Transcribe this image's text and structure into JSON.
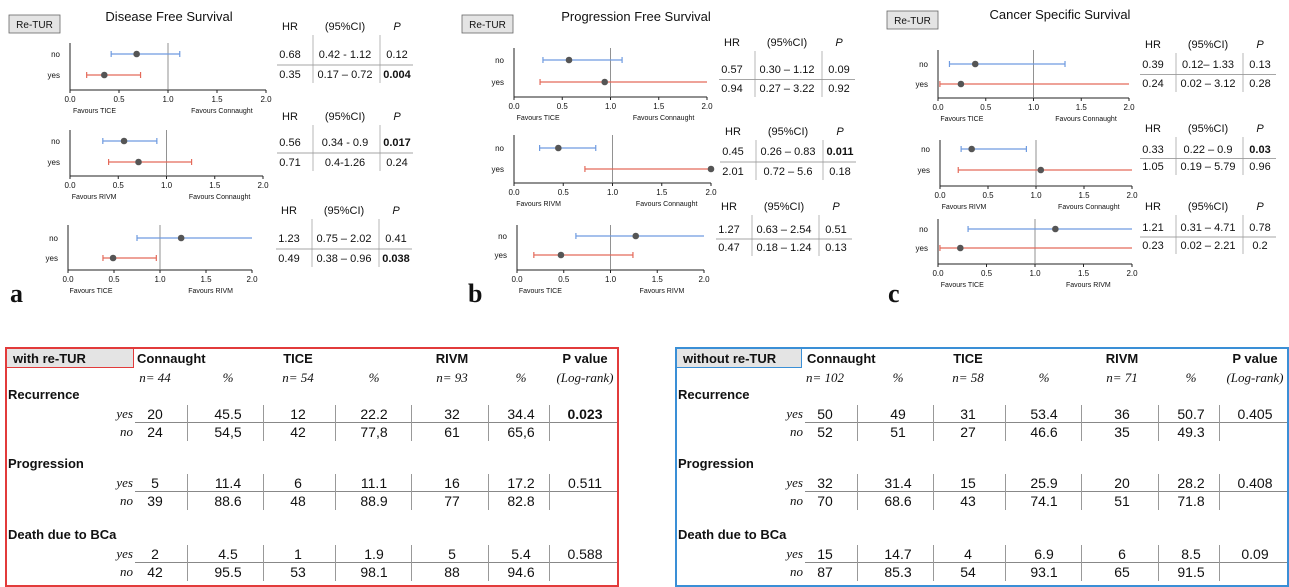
{
  "colors": {
    "blue": "#6f9be0",
    "red": "#e46a5a",
    "dot": "#555555",
    "red_border": "#e23b3b",
    "blue_border": "#3a8fd6"
  },
  "chart_data": [
    {
      "type": "forest",
      "panel": "a",
      "title": "Disease Free Survival",
      "tag": "Re-TUR",
      "favours_left": "Favours TICE",
      "favours_right": "Favours Connaught",
      "categories": [
        "no",
        "yes"
      ],
      "hr": [
        0.68,
        0.35
      ],
      "ci": [
        [
          0.42,
          1.12
        ],
        [
          0.17,
          0.72
        ]
      ],
      "ci_text": [
        "0.42 - 1.12",
        "0.17 – 0.72"
      ],
      "p": [
        "0.12",
        "0.004"
      ],
      "p_bold": [
        false,
        true
      ],
      "xlim": [
        0,
        2
      ],
      "ticks": [
        "0.0",
        "0.5",
        "1.0",
        "1.5",
        "2.0"
      ],
      "header": {
        "hr": "HR",
        "ci": "(95%CI)",
        "p": "P"
      }
    },
    {
      "type": "forest",
      "panel": "a",
      "title": "",
      "tag": "",
      "favours_left": "Favours RIVM",
      "favours_right": "Favours Connaught",
      "categories": [
        "no",
        "yes"
      ],
      "hr": [
        0.56,
        0.71
      ],
      "ci": [
        [
          0.34,
          0.9
        ],
        [
          0.4,
          1.26
        ]
      ],
      "ci_text": [
        "0.34 - 0.9",
        "0.4-1.26"
      ],
      "p": [
        "0.017",
        "0.24"
      ],
      "p_bold": [
        true,
        false
      ],
      "xlim": [
        0,
        2
      ],
      "ticks": [
        "0.0",
        "0.5",
        "1.0",
        "1.5",
        "2.0"
      ],
      "header": {
        "hr": "HR",
        "ci": "(95%CI)",
        "p": "P"
      }
    },
    {
      "type": "forest",
      "panel": "a",
      "title": "",
      "tag": "",
      "favours_left": "Favours TICE",
      "favours_right": "Favours RIVM",
      "categories": [
        "no",
        "yes"
      ],
      "hr": [
        1.23,
        0.49
      ],
      "ci": [
        [
          0.75,
          2.02
        ],
        [
          0.38,
          0.96
        ]
      ],
      "ci_text": [
        "0.75 – 2.02",
        "0.38 – 0.96"
      ],
      "p": [
        "0.41",
        "0.038"
      ],
      "p_bold": [
        false,
        true
      ],
      "xlim": [
        0,
        2
      ],
      "ticks": [
        "0.0",
        "0.5",
        "1.0",
        "1.5",
        "2.0"
      ],
      "header": {
        "hr": "HR",
        "ci": "(95%CI)",
        "p": "P"
      }
    },
    {
      "type": "forest",
      "panel": "b",
      "title": "Progression Free Survival",
      "tag": "Re-TUR",
      "favours_left": "Favours TICE",
      "favours_right": "Favours Connaught",
      "categories": [
        "no",
        "yes"
      ],
      "hr": [
        0.57,
        0.94
      ],
      "ci": [
        [
          0.3,
          1.12
        ],
        [
          0.27,
          3.22
        ]
      ],
      "ci_text": [
        "0.30 – 1.12",
        "0.27 – 3.22"
      ],
      "p": [
        "0.09",
        "0.92"
      ],
      "p_bold": [
        false,
        false
      ],
      "xlim": [
        0,
        2
      ],
      "ticks": [
        "0.0",
        "0.5",
        "1.0",
        "1.5",
        "2.0"
      ],
      "header": {
        "hr": "HR",
        "ci": "(95%CI)",
        "p": "P"
      }
    },
    {
      "type": "forest",
      "panel": "b",
      "title": "",
      "tag": "",
      "favours_left": "Favours RIVM",
      "favours_right": "Favours Connaught",
      "categories": [
        "no",
        "yes"
      ],
      "hr": [
        0.45,
        2.01
      ],
      "ci": [
        [
          0.26,
          0.83
        ],
        [
          0.72,
          5.6
        ]
      ],
      "ci_text": [
        "0.26 – 0.83",
        "0.72 – 5.6"
      ],
      "p": [
        "0.011",
        "0.18"
      ],
      "p_bold": [
        true,
        false
      ],
      "xlim": [
        0,
        2
      ],
      "ticks": [
        "0.0",
        "0.5",
        "1.0",
        "1.5",
        "2.0"
      ],
      "header": {
        "hr": "HR",
        "ci": "(95%CI)",
        "p": "P"
      }
    },
    {
      "type": "forest",
      "panel": "b",
      "title": "",
      "tag": "",
      "favours_left": "Favours TICE",
      "favours_right": "Favours RIVM",
      "categories": [
        "no",
        "yes"
      ],
      "hr": [
        1.27,
        0.47
      ],
      "ci": [
        [
          0.63,
          2.54
        ],
        [
          0.18,
          1.24
        ]
      ],
      "ci_text": [
        "0.63 – 2.54",
        "0.18 – 1.24"
      ],
      "p": [
        "0.51",
        "0.13"
      ],
      "p_bold": [
        false,
        false
      ],
      "xlim": [
        0,
        2
      ],
      "ticks": [
        "0.0",
        "0.5",
        "1.0",
        "1.5",
        "2.0"
      ],
      "header": {
        "hr": "HR",
        "ci": "(95%CI)",
        "p": "P"
      }
    },
    {
      "type": "forest",
      "panel": "c",
      "title": "Cancer Specific Survival",
      "tag": "Re-TUR",
      "favours_left": "Favours TICE",
      "favours_right": "Favours Connaught",
      "categories": [
        "no",
        "yes"
      ],
      "hr": [
        0.39,
        0.24
      ],
      "ci": [
        [
          0.12,
          1.33
        ],
        [
          0.02,
          3.12
        ]
      ],
      "ci_text": [
        "0.12– 1.33",
        "0.02 – 3.12"
      ],
      "p": [
        "0.13",
        "0.28"
      ],
      "p_bold": [
        false,
        false
      ],
      "xlim": [
        0,
        2
      ],
      "ticks": [
        "0.0",
        "0.5",
        "1.0",
        "1.5",
        "2.0"
      ],
      "header": {
        "hr": "HR",
        "ci": "(95%CI)",
        "p": "P"
      }
    },
    {
      "type": "forest",
      "panel": "c",
      "title": "",
      "tag": "",
      "favours_left": "Favours RIVM",
      "favours_right": "Favours Connaught",
      "categories": [
        "no",
        "yes"
      ],
      "hr": [
        0.33,
        1.05
      ],
      "ci": [
        [
          0.22,
          0.9
        ],
        [
          0.19,
          5.79
        ]
      ],
      "ci_text": [
        "0.22 – 0.9",
        "0.19 – 5.79"
      ],
      "p": [
        "0.03",
        "0.96"
      ],
      "p_bold": [
        true,
        false
      ],
      "xlim": [
        0,
        2
      ],
      "ticks": [
        "0.0",
        "0.5",
        "1.0",
        "1.5",
        "2.0"
      ],
      "header": {
        "hr": "HR",
        "ci": "(95%CI)",
        "p": "P"
      }
    },
    {
      "type": "forest",
      "panel": "c",
      "title": "",
      "tag": "",
      "favours_left": "Favours TICE",
      "favours_right": "Favours RIVM",
      "categories": [
        "no",
        "yes"
      ],
      "hr": [
        1.21,
        0.23
      ],
      "ci": [
        [
          0.31,
          4.71
        ],
        [
          0.02,
          2.21
        ]
      ],
      "ci_text": [
        "0.31 – 4.71",
        "0.02 – 2.21"
      ],
      "p": [
        "0.78",
        "0.2"
      ],
      "p_bold": [
        false,
        false
      ],
      "xlim": [
        0,
        2
      ],
      "ticks": [
        "0.0",
        "0.5",
        "1.0",
        "1.5",
        "2.0"
      ],
      "header": {
        "hr": "HR",
        "ci": "(95%CI)",
        "p": "P"
      }
    },
    {
      "type": "table",
      "tag": "with re-TUR",
      "columns": [
        "Connaught",
        "TICE",
        "RIVM",
        "P value"
      ],
      "subheader": [
        "n= 44",
        "%",
        "n= 54",
        "%",
        "n= 93",
        "%",
        "(Log-rank)"
      ],
      "sections": [
        {
          "name": "Recurrence",
          "rows": [
            {
              "label": "yes",
              "values": [
                "20",
                "45.5",
                "12",
                "22.2",
                "32",
                "34.4"
              ],
              "p": "0.023",
              "p_bold": true
            },
            {
              "label": "no",
              "values": [
                "24",
                "54,5",
                "42",
                "77,8",
                "61",
                "65,6"
              ],
              "p": ""
            }
          ]
        },
        {
          "name": "Progression",
          "rows": [
            {
              "label": "yes",
              "values": [
                "5",
                "11.4",
                "6",
                "11.1",
                "16",
                "17.2"
              ],
              "p": "0.511",
              "p_bold": false
            },
            {
              "label": "no",
              "values": [
                "39",
                "88.6",
                "48",
                "88.9",
                "77",
                "82.8"
              ],
              "p": ""
            }
          ]
        },
        {
          "name": "Death due to BCa",
          "rows": [
            {
              "label": "yes",
              "values": [
                "2",
                "4.5",
                "1",
                "1.9",
                "5",
                "5.4"
              ],
              "p": "0.588",
              "p_bold": false
            },
            {
              "label": "no",
              "values": [
                "42",
                "95.5",
                "53",
                "98.1",
                "88",
                "94.6"
              ],
              "p": ""
            }
          ]
        }
      ]
    },
    {
      "type": "table",
      "tag": "without re-TUR",
      "columns": [
        "Connaught",
        "TICE",
        "RIVM",
        "P value"
      ],
      "subheader": [
        "n= 102",
        "%",
        "n= 58",
        "%",
        "n= 71",
        "%",
        "(Log-rank)"
      ],
      "sections": [
        {
          "name": "Recurrence",
          "rows": [
            {
              "label": "yes",
              "values": [
                "50",
                "49",
                "31",
                "53.4",
                "36",
                "50.7"
              ],
              "p": "0.405",
              "p_bold": false
            },
            {
              "label": "no",
              "values": [
                "52",
                "51",
                "27",
                "46.6",
                "35",
                "49.3"
              ],
              "p": ""
            }
          ]
        },
        {
          "name": "Progression",
          "rows": [
            {
              "label": "yes",
              "values": [
                "32",
                "31.4",
                "15",
                "25.9",
                "20",
                "28.2"
              ],
              "p": "0.408",
              "p_bold": false
            },
            {
              "label": "no",
              "values": [
                "70",
                "68.6",
                "43",
                "74.1",
                "51",
                "71.8"
              ],
              "p": ""
            }
          ]
        },
        {
          "name": "Death due to BCa",
          "rows": [
            {
              "label": "yes",
              "values": [
                "15",
                "14.7",
                "4",
                "6.9",
                "6",
                "8.5"
              ],
              "p": "0.09",
              "p_bold": false
            },
            {
              "label": "no",
              "values": [
                "87",
                "85.3",
                "54",
                "93.1",
                "65",
                "91.5"
              ],
              "p": ""
            }
          ]
        }
      ]
    }
  ],
  "panel_letters": [
    "a",
    "b",
    "c"
  ]
}
